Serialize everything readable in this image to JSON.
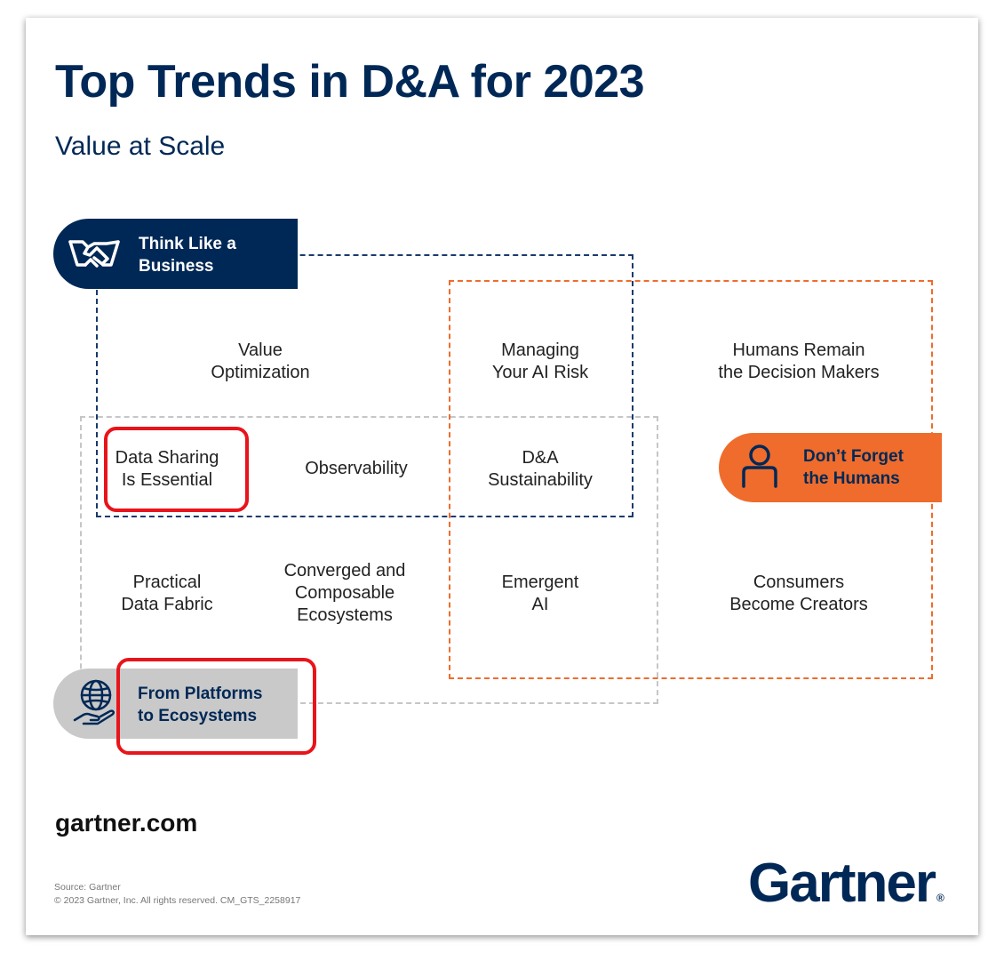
{
  "header": {
    "title": "Top Trends in D&A for 2023",
    "subtitle": "Value at Scale"
  },
  "themes": {
    "think_business": {
      "label": "Think Like a\nBusiness",
      "icon": "handshake-icon",
      "color": "#002856"
    },
    "dont_forget_humans": {
      "label": "Don’t Forget\nthe Humans",
      "icon": "person-icon",
      "color": "#ef6c2c"
    },
    "platforms_ecosystems": {
      "label": "From Platforms\nto Ecosystems",
      "icon": "globe-hand-icon",
      "color": "#c9c9c9"
    }
  },
  "trends": {
    "value_optimization": "Value\nOptimization",
    "managing_ai_risk": "Managing\nYour AI Risk",
    "humans_decision_makers": "Humans Remain\nthe Decision Makers",
    "data_sharing": "Data Sharing\nIs Essential",
    "observability": "Observability",
    "da_sustainability": "D&A\nSustainability",
    "practical_data_fabric": "Practical\nData Fabric",
    "converged_ecosystems": "Converged and\nComposable\nEcosystems",
    "emergent_ai": "Emergent\nAI",
    "consumers_creators": "Consumers\nBecome Creators"
  },
  "footer": {
    "site": "gartner.com",
    "source_line": "Source: Gartner",
    "copyright": "© 2023 Gartner, Inc. All rights reserved. CM_GTS_2258917",
    "logo_text": "Gartner",
    "logo_mark": "®"
  }
}
